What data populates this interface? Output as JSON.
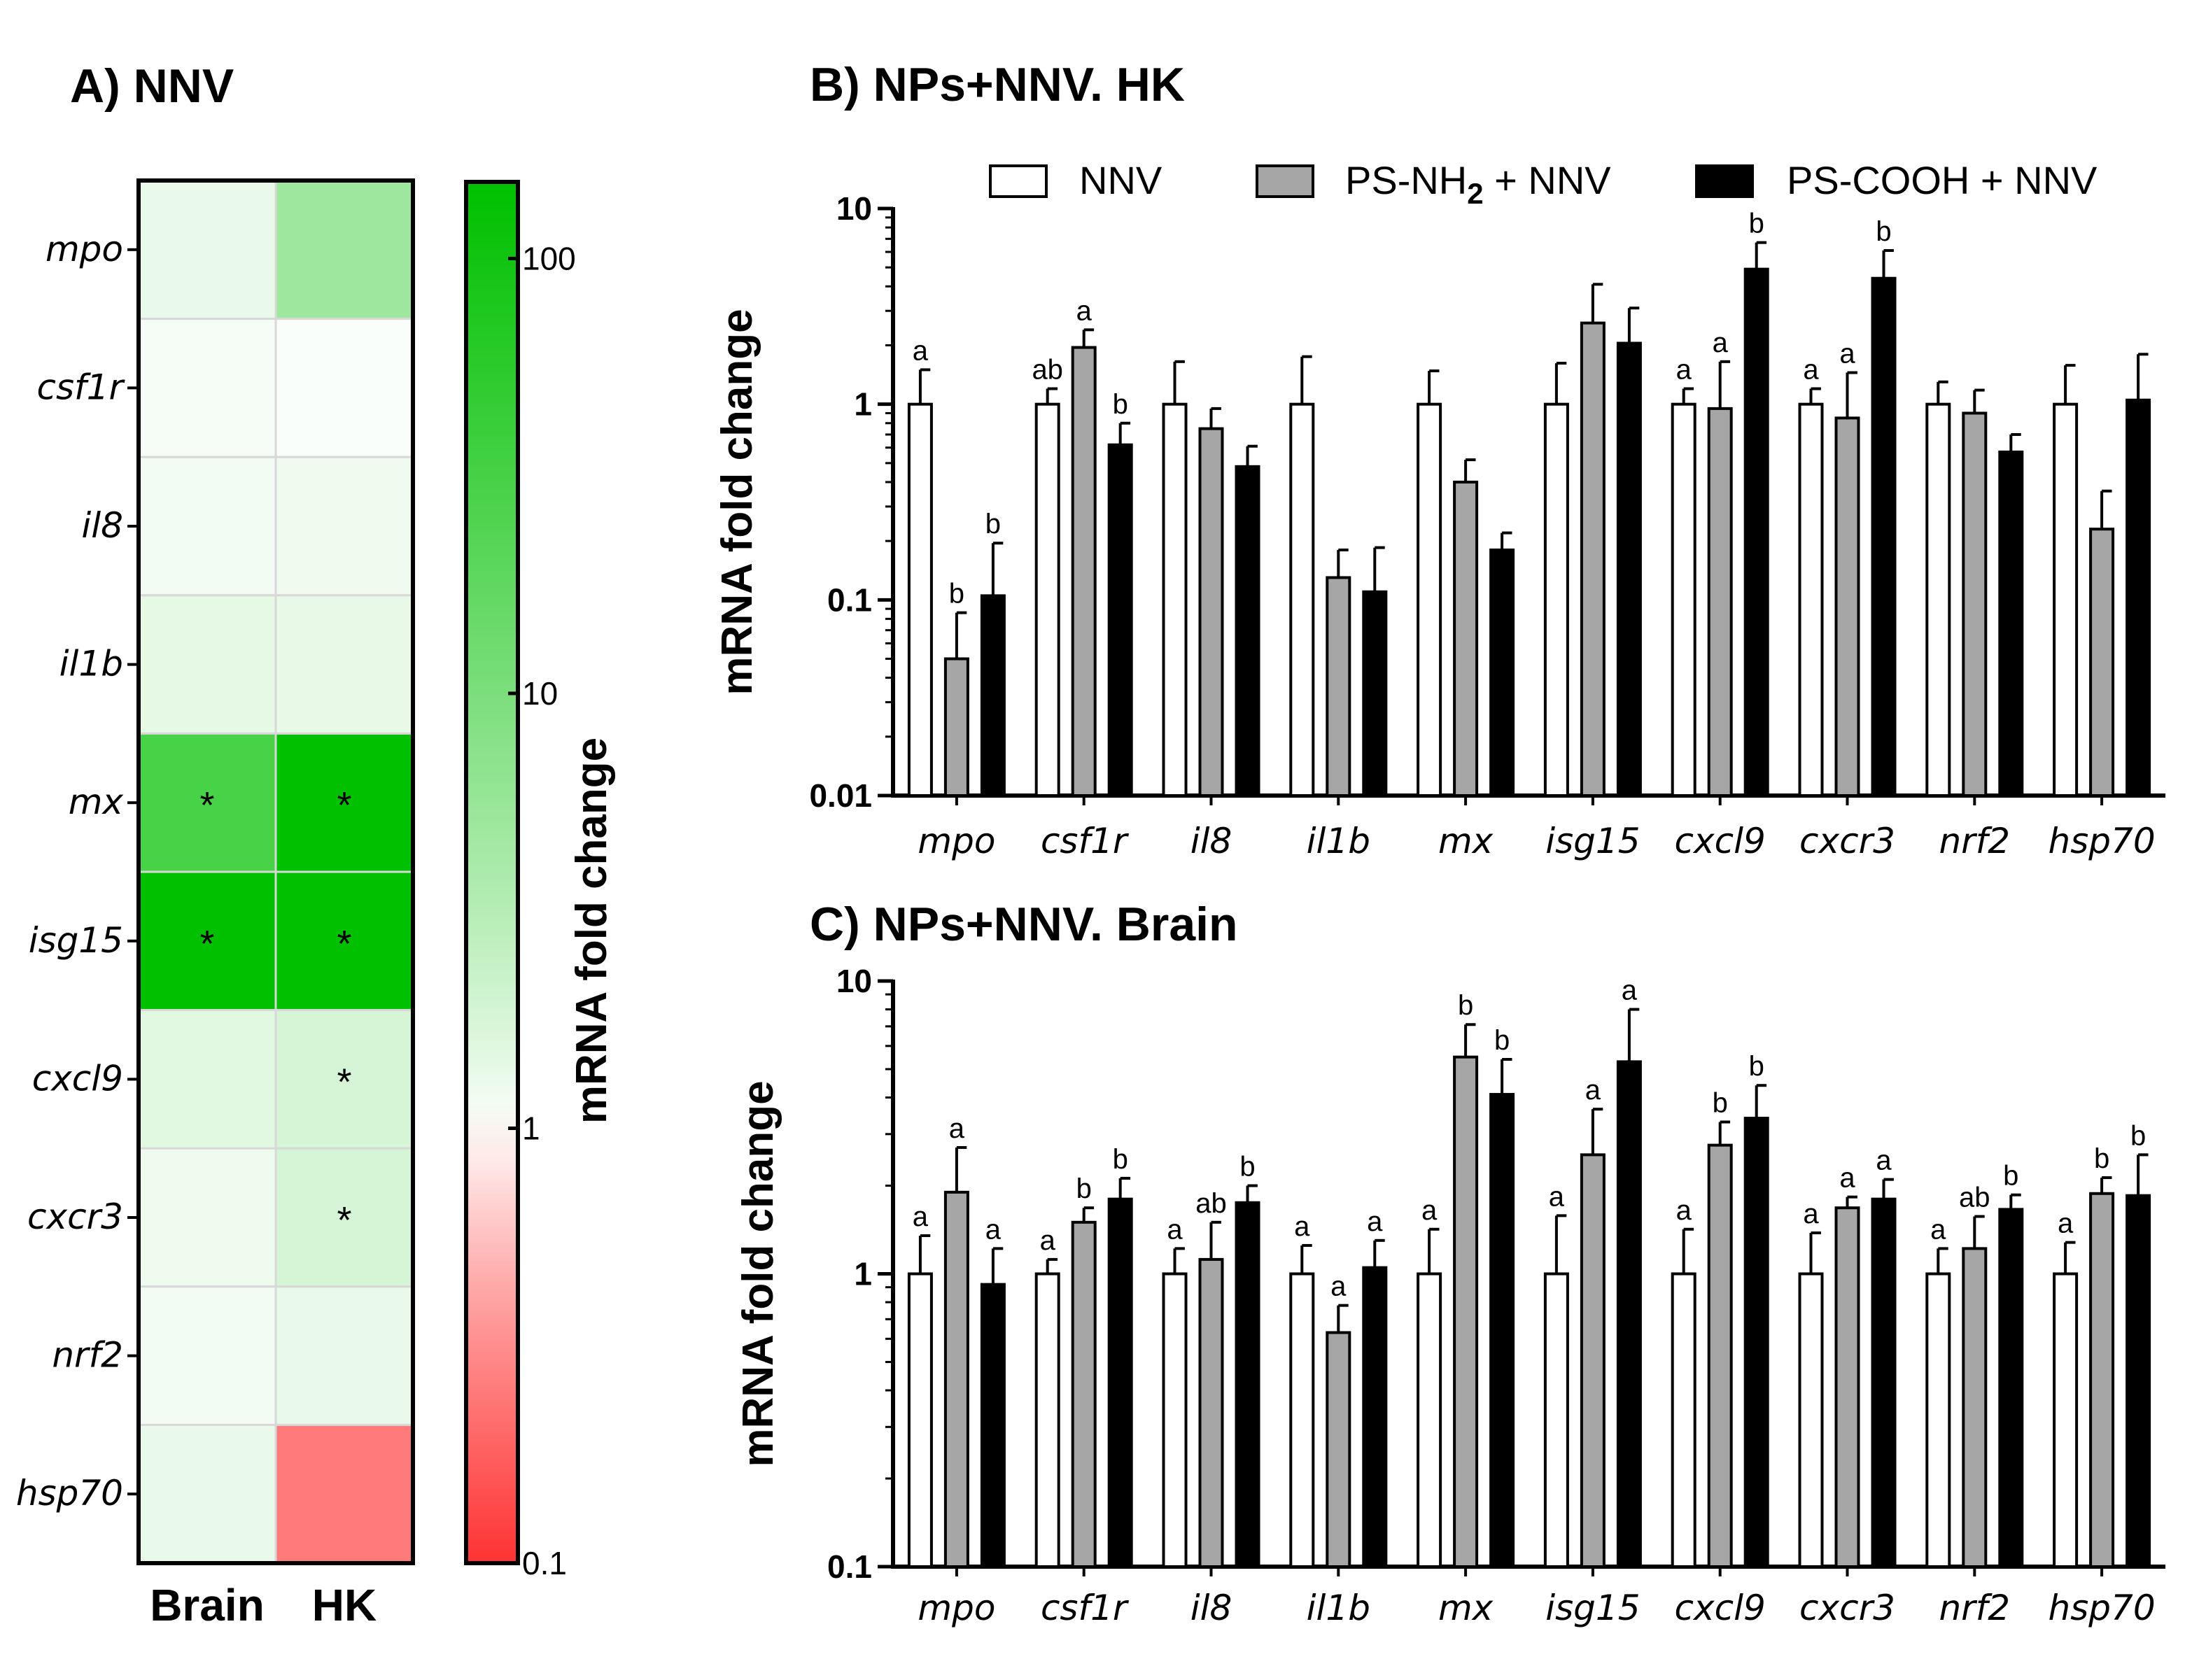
{
  "chart_data": [
    {
      "panel": "A",
      "type": "heatmap",
      "title": "A) NNV",
      "rows": [
        "mpo",
        "csf1r",
        "il8",
        "il1b",
        "mx",
        "isg15",
        "cxcl9",
        "cxcr3",
        "nrf2",
        "hsp70"
      ],
      "columns": [
        "Brain",
        "HK"
      ],
      "values": [
        [
          1.3,
          5.0
        ],
        [
          1.1,
          1.05
        ],
        [
          1.15,
          1.2
        ],
        [
          1.4,
          1.35
        ],
        [
          30,
          150
        ],
        [
          150,
          150
        ],
        [
          1.5,
          1.8
        ],
        [
          1.2,
          1.8
        ],
        [
          1.15,
          1.3
        ],
        [
          1.3,
          0.25
        ]
      ],
      "significant": [
        [
          false,
          false
        ],
        [
          false,
          false
        ],
        [
          false,
          false
        ],
        [
          false,
          false
        ],
        [
          true,
          true
        ],
        [
          true,
          true
        ],
        [
          false,
          true
        ],
        [
          false,
          true
        ],
        [
          false,
          false
        ],
        [
          false,
          false
        ]
      ],
      "star_label": "*",
      "colorbar": {
        "label": "mRNA fold change",
        "scale": "log",
        "min": 0.1,
        "max": 150,
        "ticks": [
          "0.1",
          "1",
          "10",
          "100"
        ],
        "low_color": "#ff3333",
        "mid_color": "#ffffff",
        "high_color": "#00c000"
      }
    },
    {
      "panel": "B",
      "type": "bar",
      "title": "B) NPs+NNV. HK",
      "ylabel": "mRNA fold change",
      "yscale": "log",
      "ylim": [
        0.01,
        10
      ],
      "yticks": [
        "0.01",
        "0.1",
        "1",
        "10"
      ],
      "categories": [
        "mpo",
        "csf1r",
        "il8",
        "il1b",
        "mx",
        "isg15",
        "cxcl9",
        "cxcr3",
        "nrf2",
        "hsp70"
      ],
      "series": [
        {
          "name": "NNV",
          "color": "#ffffff",
          "values": [
            1.0,
            1.0,
            1.0,
            1.0,
            1.0,
            1.0,
            1.0,
            1.0,
            1.0,
            1.0
          ],
          "errors": [
            0.5,
            0.2,
            0.65,
            0.75,
            0.48,
            0.62,
            0.2,
            0.2,
            0.3,
            0.58
          ],
          "letters": [
            "a",
            "ab",
            "",
            "",
            "",
            "",
            "a",
            "a",
            "",
            ""
          ]
        },
        {
          "name": "PS-NH2 + NNV",
          "color": "#a6a6a6",
          "values": [
            0.05,
            1.95,
            0.75,
            0.13,
            0.4,
            2.6,
            0.95,
            0.85,
            0.9,
            0.23
          ],
          "errors": [
            0.036,
            0.45,
            0.2,
            0.05,
            0.12,
            1.5,
            0.7,
            0.6,
            0.28,
            0.13
          ],
          "letters": [
            "b",
            "a",
            "",
            "",
            "",
            "",
            "a",
            "a",
            "",
            ""
          ]
        },
        {
          "name": "PS-COOH + NNV",
          "color": "#000000",
          "values": [
            0.105,
            0.62,
            0.48,
            0.11,
            0.18,
            2.05,
            4.9,
            4.4,
            0.57,
            1.05
          ],
          "errors": [
            0.09,
            0.18,
            0.13,
            0.075,
            0.04,
            1.05,
            1.8,
            1.7,
            0.13,
            0.75
          ],
          "letters": [
            "b",
            "b",
            "",
            "",
            "",
            "",
            "b",
            "b",
            "",
            ""
          ]
        }
      ],
      "legend": [
        "NNV",
        "PS-NH",
        "2",
        " + NNV",
        "PS-COOH + NNV"
      ]
    },
    {
      "panel": "C",
      "type": "bar",
      "title": "C) NPs+NNV. Brain",
      "ylabel": "mRNA fold change",
      "yscale": "log",
      "ylim": [
        0.1,
        10
      ],
      "yticks": [
        "0.1",
        "1",
        "10"
      ],
      "categories": [
        "mpo",
        "csf1r",
        "il8",
        "il1b",
        "mx",
        "isg15",
        "cxcl9",
        "cxcr3",
        "nrf2",
        "hsp70"
      ],
      "series": [
        {
          "name": "NNV",
          "color": "#ffffff",
          "values": [
            1.0,
            1.0,
            1.0,
            1.0,
            1.0,
            1.0,
            1.0,
            1.0,
            1.0,
            1.0
          ],
          "errors": [
            0.35,
            0.12,
            0.22,
            0.25,
            0.42,
            0.58,
            0.42,
            0.38,
            0.22,
            0.28
          ],
          "letters": [
            "a",
            "a",
            "a",
            "a",
            "a",
            "a",
            "a",
            "a",
            "a",
            "a"
          ]
        },
        {
          "name": "PS-NH2 + NNV",
          "color": "#a6a6a6",
          "values": [
            1.9,
            1.5,
            1.12,
            0.63,
            5.5,
            2.55,
            2.75,
            1.68,
            1.22,
            1.88
          ],
          "errors": [
            0.8,
            0.18,
            0.38,
            0.15,
            1.6,
            1.1,
            0.55,
            0.15,
            0.35,
            0.25
          ],
          "letters": [
            "a",
            "b",
            "ab",
            "a",
            "b",
            "a",
            "b",
            "a",
            "ab",
            "b"
          ]
        },
        {
          "name": "PS-COOH + NNV",
          "color": "#000000",
          "values": [
            0.92,
            1.8,
            1.75,
            1.05,
            4.1,
            5.3,
            3.4,
            1.8,
            1.66,
            1.85
          ],
          "errors": [
            0.3,
            0.32,
            0.25,
            0.25,
            1.3,
            2.7,
            1.0,
            0.3,
            0.2,
            0.7
          ],
          "letters": [
            "a",
            "b",
            "b",
            "a",
            "b",
            "a",
            "b",
            "a",
            "b",
            "b"
          ]
        }
      ]
    }
  ]
}
